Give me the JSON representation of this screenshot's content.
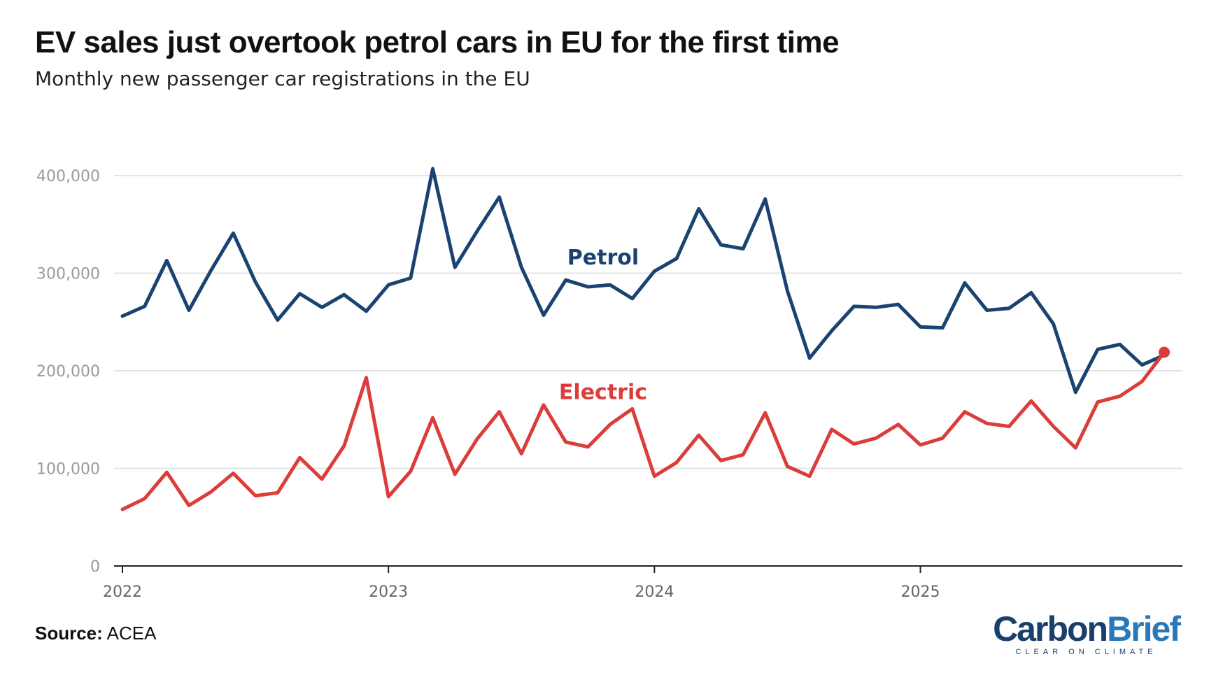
{
  "header": {
    "title": "EV sales just overtook petrol cars in EU for the first time",
    "subtitle": "Monthly new passenger car registrations in the EU"
  },
  "footer": {
    "source_label": "Source:",
    "source_value": "ACEA",
    "brand_part1": "Carbon",
    "brand_part2": "Brief",
    "brand_tagline": "CLEAR ON CLIMATE"
  },
  "colors": {
    "petrol": "#1b4371",
    "electric": "#db3d3a",
    "grid": "#e3e3e3",
    "axis": "#222222"
  },
  "chart_data": {
    "type": "line",
    "title": "EV sales just overtook petrol cars in EU for the first time",
    "subtitle": "Monthly new passenger car registrations in the EU",
    "x": [
      "2022-01",
      "2022-02",
      "2022-03",
      "2022-04",
      "2022-05",
      "2022-06",
      "2022-07",
      "2022-08",
      "2022-09",
      "2022-10",
      "2022-11",
      "2022-12",
      "2023-01",
      "2023-02",
      "2023-03",
      "2023-04",
      "2023-05",
      "2023-06",
      "2023-07",
      "2023-08",
      "2023-09",
      "2023-10",
      "2023-11",
      "2023-12",
      "2024-01",
      "2024-02",
      "2024-03",
      "2024-04",
      "2024-05",
      "2024-06",
      "2024-07",
      "2024-08",
      "2024-09",
      "2024-10",
      "2024-11",
      "2024-12",
      "2025-01",
      "2025-02",
      "2025-03",
      "2025-04",
      "2025-05",
      "2025-06",
      "2025-07",
      "2025-08",
      "2025-09",
      "2025-10",
      "2025-11",
      "2025-12"
    ],
    "x_ticks": [
      {
        "value": "2022-01",
        "label": "2022"
      },
      {
        "value": "2023-01",
        "label": "2023"
      },
      {
        "value": "2024-01",
        "label": "2024"
      },
      {
        "value": "2025-01",
        "label": "2025"
      }
    ],
    "ylim": [
      0,
      400000
    ],
    "y_ticks": [
      {
        "value": 0,
        "label": "0"
      },
      {
        "value": 100000,
        "label": "100,000"
      },
      {
        "value": 200000,
        "label": "200,000"
      },
      {
        "value": 300000,
        "label": "300,000"
      },
      {
        "value": 400000,
        "label": "400,000"
      }
    ],
    "grid": true,
    "legend": "inline labels",
    "series": [
      {
        "name": "Petrol",
        "color": "#1b4371",
        "values": [
          256000,
          266000,
          313000,
          262000,
          303000,
          341000,
          291000,
          252000,
          279000,
          265000,
          278000,
          261000,
          288000,
          295000,
          407000,
          306000,
          343000,
          378000,
          306000,
          257000,
          293000,
          286000,
          288000,
          274000,
          302000,
          315000,
          366000,
          329000,
          325000,
          376000,
          282000,
          213000,
          241000,
          266000,
          265000,
          268000,
          245000,
          244000,
          290000,
          262000,
          264000,
          280000,
          248000,
          178000,
          222000,
          227000,
          206000,
          216000
        ]
      },
      {
        "name": "Electric",
        "color": "#db3d3a",
        "values": [
          58000,
          69000,
          96000,
          62000,
          76000,
          95000,
          72000,
          75000,
          111000,
          89000,
          123000,
          193000,
          71000,
          97000,
          152000,
          94000,
          130000,
          158000,
          115000,
          165000,
          127000,
          122000,
          145000,
          161000,
          92000,
          106000,
          134000,
          108000,
          114000,
          157000,
          102000,
          92000,
          140000,
          125000,
          131000,
          145000,
          124000,
          131000,
          158000,
          146000,
          143000,
          169000,
          143000,
          121000,
          168000,
          174000,
          189000,
          219000
        ]
      }
    ]
  }
}
